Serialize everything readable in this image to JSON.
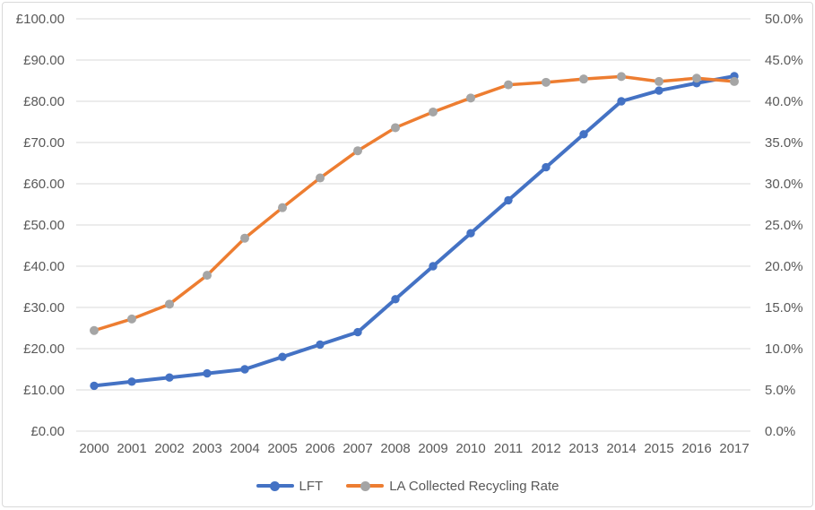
{
  "chart_data": {
    "type": "line",
    "title": "",
    "categories": [
      "2000",
      "2001",
      "2002",
      "2003",
      "2004",
      "2005",
      "2006",
      "2007",
      "2008",
      "2009",
      "2010",
      "2011",
      "2012",
      "2013",
      "2014",
      "2015",
      "2016",
      "2017"
    ],
    "series": [
      {
        "name": "LFT",
        "axis": "left",
        "color": "#4472C4",
        "marker_color": "#4472C4",
        "values": [
          11,
          12,
          13,
          14,
          15,
          18,
          21,
          24,
          32,
          40,
          48,
          56,
          64,
          72,
          80,
          82.6,
          84.4,
          86.1
        ]
      },
      {
        "name": "LA Collected Recycling Rate",
        "axis": "right",
        "color": "#ED7D31",
        "marker_color": "#A5A5A5",
        "values": [
          12.2,
          13.6,
          15.4,
          18.9,
          23.4,
          27.1,
          30.7,
          34.0,
          36.8,
          38.7,
          40.4,
          42.0,
          42.3,
          42.7,
          43.0,
          42.4,
          42.8,
          42.4
        ]
      }
    ],
    "left_axis": {
      "min": 0,
      "max": 100,
      "tick_labels": [
        "£0.00",
        "£10.00",
        "£20.00",
        "£30.00",
        "£40.00",
        "£50.00",
        "£60.00",
        "£70.00",
        "£80.00",
        "£90.00",
        "£100.00"
      ]
    },
    "right_axis": {
      "min": 0,
      "max": 50,
      "tick_labels": [
        "0.0%",
        "5.0%",
        "10.0%",
        "15.0%",
        "20.0%",
        "25.0%",
        "30.0%",
        "35.0%",
        "40.0%",
        "45.0%",
        "50.0%"
      ]
    },
    "legend": {
      "position": "bottom",
      "items": [
        {
          "label": "LFT"
        },
        {
          "label": "LA Collected Recycling Rate"
        }
      ]
    },
    "grid": true,
    "style": {
      "grid_color": "#D9D9D9",
      "border_color": "#D9D9D9",
      "text_color": "#595959",
      "background": "#FFFFFF"
    }
  }
}
